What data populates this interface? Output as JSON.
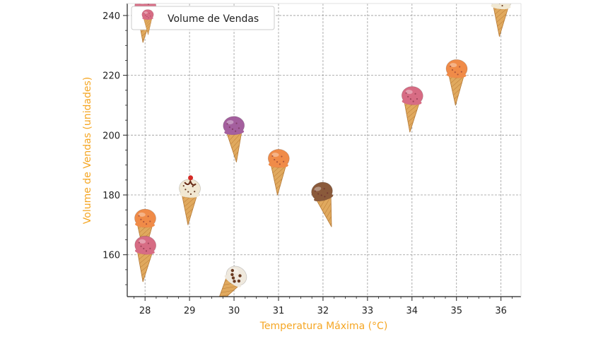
{
  "chart_data": {
    "type": "scatter",
    "xlabel": "Temperatura Máxima (°C)",
    "ylabel": "Volume de Vendas (unidades)",
    "label_color": "#f5a623",
    "xlim": [
      27.6,
      36.45
    ],
    "ylim": [
      146,
      244
    ],
    "xticks": [
      28,
      29,
      30,
      31,
      32,
      33,
      34,
      35,
      36
    ],
    "yticks": [
      160,
      180,
      200,
      220,
      240
    ],
    "grid": true,
    "legend": {
      "position": "top-left",
      "entries": [
        "Volume de Vendas"
      ]
    },
    "series": [
      {
        "name": "Volume de Vendas",
        "marker": "ice-cream-cone-icon",
        "points": [
          {
            "x": 28,
            "y": 238,
            "flavor": "strawberry"
          },
          {
            "x": 28,
            "y": 167,
            "flavor": "orange"
          },
          {
            "x": 28,
            "y": 158,
            "flavor": "strawberry"
          },
          {
            "x": 29,
            "y": 177,
            "flavor": "vanilla"
          },
          {
            "x": 30,
            "y": 148,
            "flavor": "cookies"
          },
          {
            "x": 30,
            "y": 198,
            "flavor": "berry"
          },
          {
            "x": 31,
            "y": 187,
            "flavor": "orange"
          },
          {
            "x": 32,
            "y": 176,
            "flavor": "chocolate"
          },
          {
            "x": 34,
            "y": 208,
            "flavor": "strawberry"
          },
          {
            "x": 35,
            "y": 217,
            "flavor": "orange"
          },
          {
            "x": 36,
            "y": 240,
            "flavor": "vanilla"
          }
        ]
      }
    ]
  },
  "flavor_colors": {
    "strawberry": "#d76c84",
    "orange": "#f08b48",
    "vanilla": "#f1e8d2",
    "cookies": "#efe9de",
    "berry": "#a45f9e",
    "chocolate": "#8a5a3b",
    "cone": "#dfa75b",
    "cherry": "#d42a25"
  }
}
